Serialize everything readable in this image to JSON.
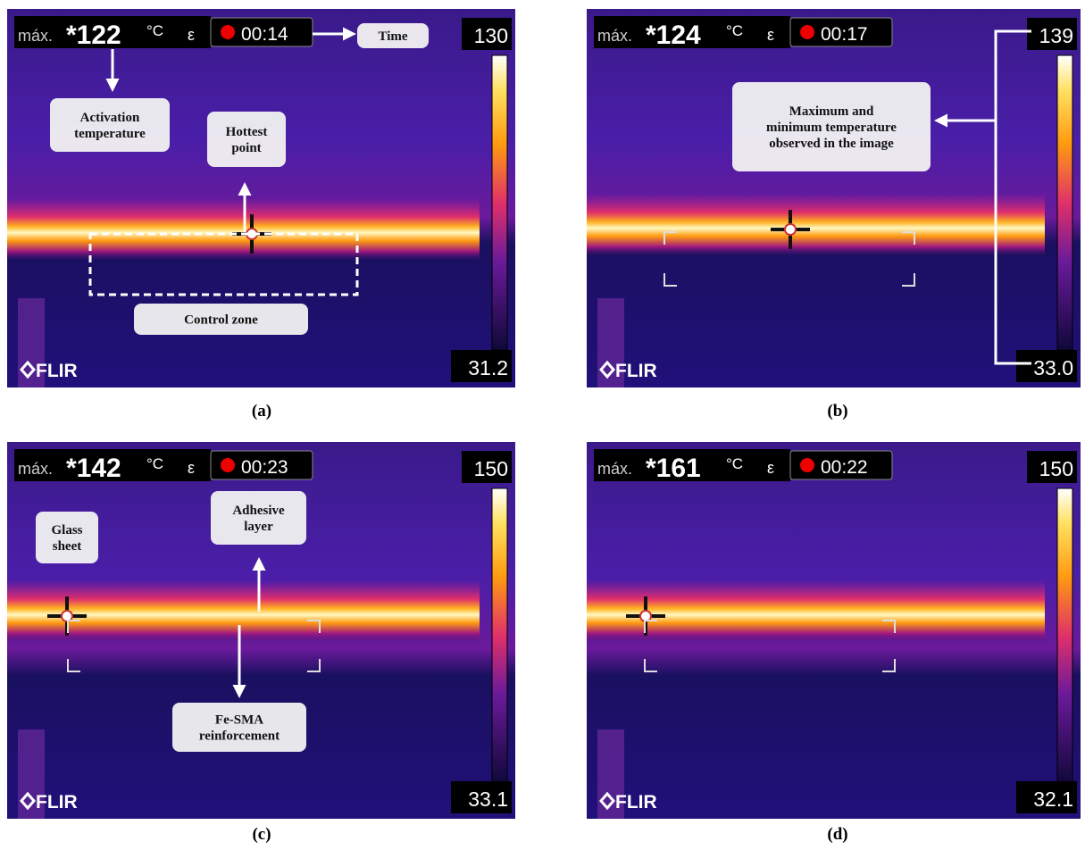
{
  "panels": [
    {
      "caption": "(a)",
      "max_label": "máx.",
      "max_value": "*122",
      "unit": "°C",
      "epsilon": "ε",
      "time": "00:14",
      "scale_max": "130",
      "scale_min": "31.2",
      "logo": "FLIR",
      "annotations": [
        {
          "lines": [
            "Time"
          ]
        },
        {
          "lines": [
            "Activation",
            "temperature"
          ]
        },
        {
          "lines": [
            "Hottest",
            "point"
          ]
        },
        {
          "lines": [
            "Control zone"
          ]
        }
      ]
    },
    {
      "caption": "(b)",
      "max_label": "máx.",
      "max_value": "*124",
      "unit": "°C",
      "epsilon": "ε",
      "time": "00:17",
      "scale_max": "139",
      "scale_min": "33.0",
      "logo": "FLIR",
      "annotations": [
        {
          "lines": [
            "Maximum and",
            "minimum temperature",
            "observed in the image"
          ]
        }
      ]
    },
    {
      "caption": "(c)",
      "max_label": "máx.",
      "max_value": "*142",
      "unit": "°C",
      "epsilon": "ε",
      "time": "00:23",
      "scale_max": "150",
      "scale_min": "33.1",
      "logo": "FLIR",
      "annotations": [
        {
          "lines": [
            "Glass",
            "sheet"
          ]
        },
        {
          "lines": [
            "Adhesive",
            "layer"
          ]
        },
        {
          "lines": [
            "Fe-SMA",
            "reinforcement"
          ]
        }
      ]
    },
    {
      "caption": "(d)",
      "max_label": "máx.",
      "max_value": "*161",
      "unit": "°C",
      "epsilon": "ε",
      "time": "00:22",
      "scale_max": "150",
      "scale_min": "32.1",
      "logo": "FLIR",
      "annotations": []
    }
  ]
}
